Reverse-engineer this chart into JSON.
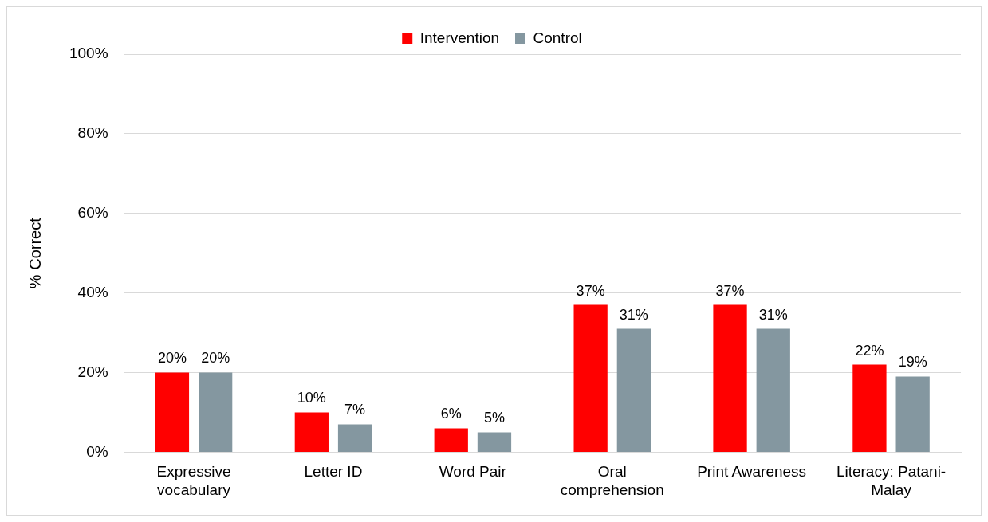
{
  "chart_data": {
    "type": "bar",
    "ylabel": "% Correct",
    "categories": [
      "Expressive vocabulary",
      "Letter ID",
      "Word Pair",
      "Oral comprehension",
      "Print Awareness",
      "Literacy: Patani-Malay"
    ],
    "series": [
      {
        "name": "Intervention",
        "color": "#ff0000",
        "values": [
          20,
          10,
          6,
          37,
          37,
          22
        ],
        "value_labels": [
          "20%",
          "10%",
          "6%",
          "37%",
          "37%",
          "22%"
        ]
      },
      {
        "name": "Control",
        "color": "#8497a0",
        "values": [
          20,
          7,
          5,
          31,
          31,
          19
        ],
        "value_labels": [
          "20%",
          "7%",
          "5%",
          "31%",
          "31%",
          "19%"
        ]
      }
    ],
    "ylim": [
      0,
      100
    ],
    "yticks": [
      {
        "value": 0,
        "label": "0%"
      },
      {
        "value": 20,
        "label": "20%"
      },
      {
        "value": 40,
        "label": "40%"
      },
      {
        "value": 60,
        "label": "60%"
      },
      {
        "value": 80,
        "label": "80%"
      },
      {
        "value": 100,
        "label": "100%"
      }
    ],
    "grid": "y",
    "legend": "top"
  }
}
